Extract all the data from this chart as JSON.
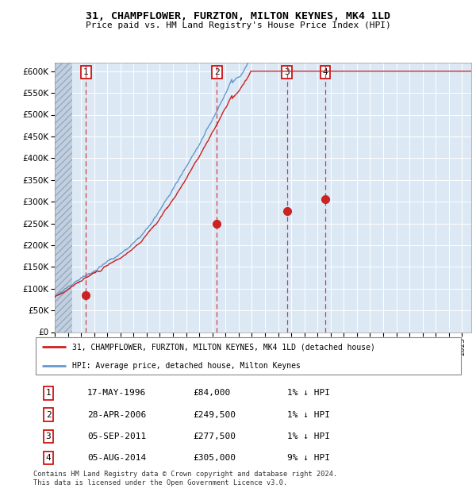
{
  "title": "31, CHAMPFLOWER, FURZTON, MILTON KEYNES, MK4 1LD",
  "subtitle": "Price paid vs. HM Land Registry's House Price Index (HPI)",
  "legend_line1": "31, CHAMPFLOWER, FURZTON, MILTON KEYNES, MK4 1LD (detached house)",
  "legend_line2": "HPI: Average price, detached house, Milton Keynes",
  "footer": "Contains HM Land Registry data © Crown copyright and database right 2024.\nThis data is licensed under the Open Government Licence v3.0.",
  "sale_dates": [
    1996.38,
    2006.33,
    2011.68,
    2014.59
  ],
  "sale_prices": [
    84000,
    249500,
    277500,
    305000
  ],
  "sale_labels": [
    "1",
    "2",
    "3",
    "4"
  ],
  "table_rows": [
    [
      "1",
      "17-MAY-1996",
      "£84,000",
      "1% ↓ HPI"
    ],
    [
      "2",
      "28-APR-2006",
      "£249,500",
      "1% ↓ HPI"
    ],
    [
      "3",
      "05-SEP-2011",
      "£277,500",
      "1% ↓ HPI"
    ],
    [
      "4",
      "05-AUG-2014",
      "£305,000",
      "9% ↓ HPI"
    ]
  ],
  "hpi_color": "#6699cc",
  "price_color": "#cc2222",
  "background_color": "#dce9f5",
  "plot_bg": "#dce9f5",
  "grid_color": "#ffffff",
  "vline_color": "#cc2222",
  "ylim": [
    0,
    620000
  ],
  "xlim_start": 1994.0,
  "xlim_end": 2025.7
}
